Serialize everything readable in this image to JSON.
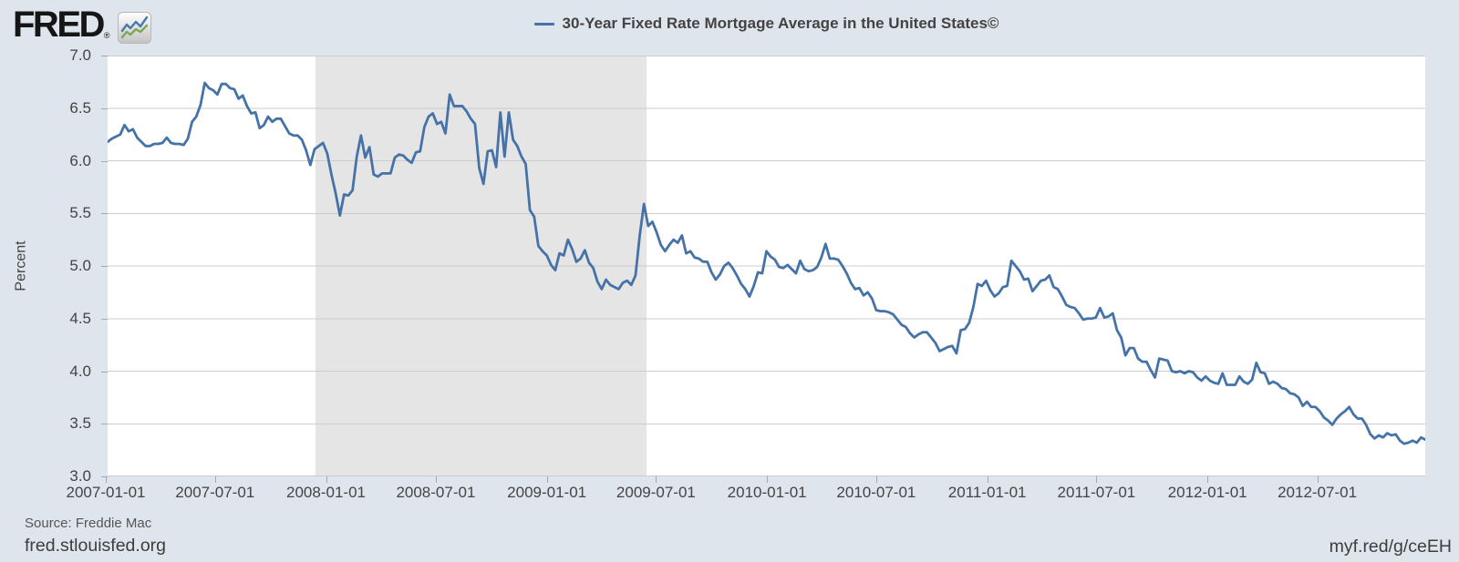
{
  "header": {
    "logo_text": "FRED",
    "logo_registered": "®",
    "logo_icon": "fred-chart-icon"
  },
  "legend": {
    "label": "30-Year Fixed Rate Mortgage Average in the United States©",
    "swatch_color": "#4572a7"
  },
  "footer": {
    "source": "Source: Freddie Mac",
    "site": "fred.stlouisfed.org",
    "short_url": "myf.red/g/ceEH"
  },
  "chart_data": {
    "type": "line",
    "title": "30-Year Fixed Rate Mortgage Average in the United States©",
    "xlabel": "",
    "ylabel": "Percent",
    "ylim": [
      3.0,
      7.0
    ],
    "yticks": [
      3.0,
      3.5,
      4.0,
      4.5,
      5.0,
      5.5,
      6.0,
      6.5,
      7.0
    ],
    "xtick_labels": [
      "2007-01-01",
      "2007-07-01",
      "2008-01-01",
      "2008-07-01",
      "2009-01-01",
      "2009-07-01",
      "2010-01-01",
      "2010-07-01",
      "2011-01-01",
      "2011-07-01",
      "2012-01-01",
      "2012-07-01"
    ],
    "grid": true,
    "legend_position": "top-center",
    "line_color": "#4572a7",
    "line_width": 2.8,
    "grid_color": "#cccccc",
    "plot_background": "#ffffff",
    "recession_color": "#e5e5e5",
    "recession_bands": [
      {
        "start": "2007-12-15",
        "end": "2009-06-15"
      }
    ],
    "x_start_date": "2007-01-04",
    "x_interval_days": 7,
    "series": [
      {
        "name": "30-Year Fixed Rate Mortgage Average in the United States©",
        "values": [
          6.18,
          6.21,
          6.23,
          6.25,
          6.34,
          6.28,
          6.3,
          6.22,
          6.18,
          6.14,
          6.14,
          6.16,
          6.16,
          6.17,
          6.22,
          6.17,
          6.16,
          6.16,
          6.15,
          6.21,
          6.37,
          6.42,
          6.53,
          6.74,
          6.69,
          6.67,
          6.63,
          6.73,
          6.73,
          6.69,
          6.68,
          6.59,
          6.62,
          6.52,
          6.45,
          6.46,
          6.31,
          6.34,
          6.42,
          6.37,
          6.4,
          6.4,
          6.33,
          6.26,
          6.24,
          6.24,
          6.2,
          6.1,
          5.96,
          6.11,
          6.14,
          6.17,
          6.07,
          5.87,
          5.69,
          5.48,
          5.68,
          5.67,
          5.72,
          6.04,
          6.24,
          6.03,
          6.13,
          5.87,
          5.85,
          5.88,
          5.88,
          5.88,
          6.03,
          6.06,
          6.05,
          6.01,
          5.98,
          6.08,
          6.09,
          6.32,
          6.42,
          6.45,
          6.35,
          6.37,
          6.26,
          6.63,
          6.52,
          6.52,
          6.52,
          6.47,
          6.4,
          6.35,
          5.93,
          5.78,
          6.09,
          6.1,
          5.94,
          6.46,
          6.04,
          6.46,
          6.2,
          6.14,
          6.04,
          5.97,
          5.53,
          5.47,
          5.19,
          5.14,
          5.1,
          5.01,
          4.96,
          5.12,
          5.1,
          5.25,
          5.16,
          5.04,
          5.07,
          5.15,
          5.03,
          4.98,
          4.85,
          4.78,
          4.87,
          4.82,
          4.8,
          4.78,
          4.84,
          4.86,
          4.82,
          4.91,
          5.29,
          5.59,
          5.38,
          5.42,
          5.32,
          5.2,
          5.14,
          5.2,
          5.25,
          5.22,
          5.29,
          5.12,
          5.14,
          5.08,
          5.07,
          5.04,
          5.04,
          4.94,
          4.87,
          4.92,
          5.0,
          5.03,
          4.98,
          4.91,
          4.83,
          4.78,
          4.71,
          4.81,
          4.94,
          4.93,
          5.14,
          5.09,
          5.06,
          4.99,
          4.98,
          5.01,
          4.97,
          4.93,
          5.05,
          4.97,
          4.95,
          4.96,
          4.99,
          5.08,
          5.21,
          5.07,
          5.07,
          5.06,
          5.0,
          4.93,
          4.84,
          4.78,
          4.79,
          4.72,
          4.75,
          4.69,
          4.58,
          4.57,
          4.57,
          4.56,
          4.54,
          4.49,
          4.44,
          4.42,
          4.36,
          4.32,
          4.35,
          4.37,
          4.37,
          4.32,
          4.27,
          4.19,
          4.21,
          4.23,
          4.24,
          4.17,
          4.39,
          4.4,
          4.46,
          4.61,
          4.83,
          4.81,
          4.86,
          4.77,
          4.71,
          4.74,
          4.8,
          4.81,
          5.05,
          5.0,
          4.95,
          4.87,
          4.88,
          4.76,
          4.81,
          4.86,
          4.87,
          4.91,
          4.8,
          4.78,
          4.71,
          4.63,
          4.61,
          4.6,
          4.55,
          4.49,
          4.5,
          4.5,
          4.51,
          4.6,
          4.51,
          4.52,
          4.55,
          4.39,
          4.32,
          4.15,
          4.22,
          4.22,
          4.12,
          4.09,
          4.09,
          4.01,
          3.94,
          4.12,
          4.11,
          4.1,
          4.0,
          3.99,
          4.0,
          3.98,
          4.0,
          3.99,
          3.94,
          3.91,
          3.95,
          3.91,
          3.89,
          3.88,
          3.98,
          3.87,
          3.87,
          3.87,
          3.95,
          3.9,
          3.88,
          3.92,
          4.08,
          3.99,
          3.98,
          3.88,
          3.9,
          3.88,
          3.84,
          3.83,
          3.79,
          3.78,
          3.75,
          3.67,
          3.71,
          3.66,
          3.66,
          3.62,
          3.56,
          3.53,
          3.49,
          3.55,
          3.59,
          3.62,
          3.66,
          3.59,
          3.55,
          3.55,
          3.49,
          3.4,
          3.36,
          3.39,
          3.37,
          3.41,
          3.39,
          3.4,
          3.34,
          3.31,
          3.32,
          3.34,
          3.32,
          3.37,
          3.35
        ]
      }
    ]
  }
}
